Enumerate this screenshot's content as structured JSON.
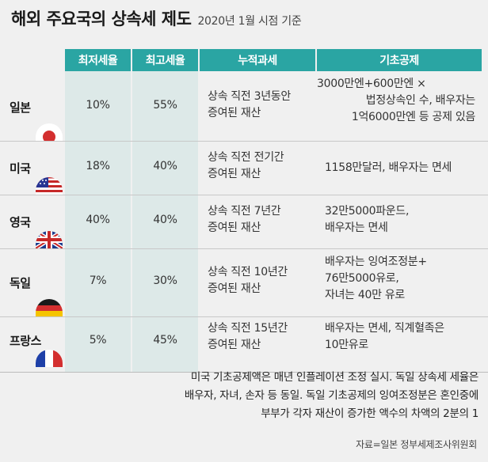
{
  "header": {
    "title": "해외 주요국의 상속세 제도",
    "subtitle": "2020년 1월 시점 기준"
  },
  "columns": [
    "최저세율",
    "최고세율",
    "누적과세",
    "기초공제"
  ],
  "rows": [
    {
      "country": "일본",
      "flag": "japan-flag-icon",
      "min_rate": "10%",
      "max_rate": "55%",
      "cumulative": [
        "상속 직전 3년동안",
        "증여된 재산"
      ],
      "deduction": [
        "3000만엔+600만엔 ×",
        "법정상속인 수, 배우자는",
        "1억6000만엔 등 공제 있음"
      ]
    },
    {
      "country": "미국",
      "flag": "usa-flag-icon",
      "min_rate": "18%",
      "max_rate": "40%",
      "cumulative": [
        "상속 직전 전기간",
        "증여된 재산"
      ],
      "deduction": [
        "1158만달러, 배우자는 면세"
      ]
    },
    {
      "country": "영국",
      "flag": "uk-flag-icon",
      "min_rate": "40%",
      "max_rate": "40%",
      "cumulative": [
        "상속 직전 7년간",
        "증여된 재산"
      ],
      "deduction": [
        "32만5000파운드,",
        "배우자는 면세"
      ]
    },
    {
      "country": "독일",
      "flag": "germany-flag-icon",
      "min_rate": "7%",
      "max_rate": "30%",
      "cumulative": [
        "상속 직전 10년간",
        "증여된 재산"
      ],
      "deduction": [
        "배우자는 잉여조정분+",
        "76만5000유로,",
        "자녀는 40만 유로"
      ]
    },
    {
      "country": "프랑스",
      "flag": "france-flag-icon",
      "min_rate": "5%",
      "max_rate": "45%",
      "cumulative": [
        "상속 직전 15년간",
        "증여된 재산"
      ],
      "deduction": [
        "배우자는 면세, 직계혈족은",
        "10만유로"
      ]
    }
  ],
  "footnote": [
    "미국 기초공제액은 매년 인플레이션 조정 실시. 독일 상속세 세율은",
    "배우자, 자녀, 손자 등 동일. 독일 기초공제의 잉여조정분은 혼인중에",
    "부부가 각자 재산이 증가한 액수의 차액의 2분의 1"
  ],
  "source": "자료=일본 정부세제조사위원회",
  "colors": {
    "header_bg": "#2aa5a3",
    "shade": "#dde9e8",
    "background": "#f0f0f0"
  }
}
